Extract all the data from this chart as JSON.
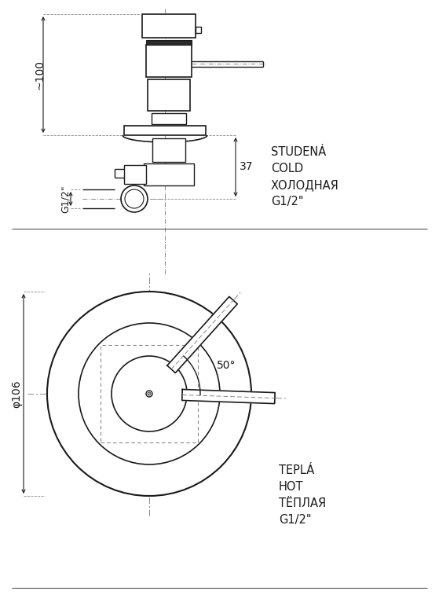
{
  "bg_color": "#ffffff",
  "line_color": "#1a1a1a",
  "gray_color": "#888888",
  "label_100": "~100",
  "label_37": "37",
  "label_g12_side": "G1/2\"",
  "label_phi106": "φ106",
  "cold_label": "STUDENÁ\nCOLD\nХОЛОДНАЯ\nG1/2\"",
  "hot_label": "TEPLÁ\nHOT\nТЁПЛАЯ\nG1/2\"",
  "angle_label": "50°",
  "fig_w": 5.59,
  "fig_h": 7.66,
  "dpi": 100
}
